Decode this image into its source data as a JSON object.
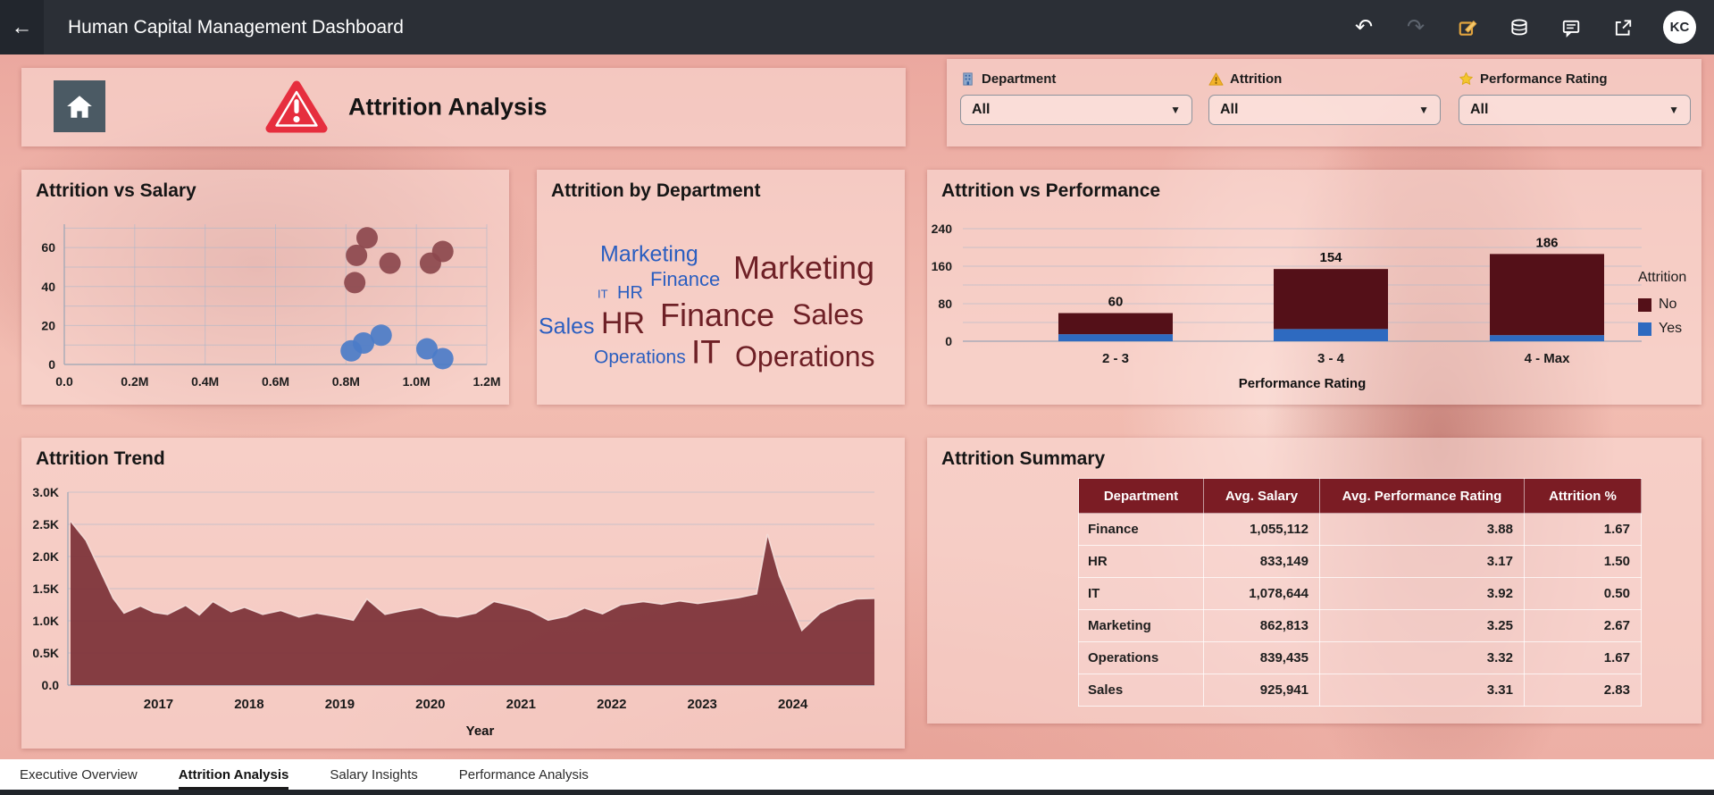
{
  "topbar": {
    "title": "Human Capital Management Dashboard",
    "icons": [
      "back-icon",
      "undo-icon",
      "redo-icon",
      "edit-icon",
      "data-refresh-icon",
      "comments-icon",
      "share-icon"
    ],
    "avatar": "KC"
  },
  "header": {
    "title": "Attrition Analysis",
    "filters": [
      {
        "icon": "department-icon",
        "label": "Department",
        "value": "All"
      },
      {
        "icon": "attrition-warning-icon",
        "label": "Attrition",
        "value": "All"
      },
      {
        "icon": "performance-star-icon",
        "label": "Performance Rating",
        "value": "All"
      }
    ]
  },
  "tabs": [
    {
      "label": "Executive Overview",
      "active": false
    },
    {
      "label": "Attrition Analysis",
      "active": true
    },
    {
      "label": "Salary Insights",
      "active": false
    },
    {
      "label": "Performance Analysis",
      "active": false
    }
  ],
  "chart_data": [
    {
      "id": "attrition_vs_salary",
      "type": "scatter",
      "title": "Attrition vs Salary",
      "xlabel": "",
      "ylabel": "",
      "xlim": [
        0,
        1.2
      ],
      "ylim": [
        0,
        72
      ],
      "xtick_labels": [
        "0.0",
        "0.2M",
        "0.4M",
        "0.6M",
        "0.8M",
        "1.0M",
        "1.2M"
      ],
      "yticks": [
        0,
        20,
        40,
        60
      ],
      "grid": true,
      "series": [
        {
          "name": "No",
          "color": "#8c484d",
          "points": [
            [
              0.86,
              65
            ],
            [
              0.83,
              56
            ],
            [
              0.925,
              52
            ],
            [
              0.825,
              42
            ],
            [
              1.04,
              52
            ],
            [
              1.075,
              58
            ]
          ]
        },
        {
          "name": "Yes",
          "color": "#4b7cc8",
          "points": [
            [
              0.815,
              7
            ],
            [
              0.85,
              11
            ],
            [
              0.9,
              15
            ],
            [
              1.03,
              8
            ],
            [
              1.075,
              3
            ]
          ]
        }
      ]
    },
    {
      "id": "attrition_by_department",
      "type": "wordcloud",
      "title": "Attrition by Department",
      "colors": {
        "Yes": "#2a5ec0",
        "No": "#6e2026"
      },
      "words": [
        {
          "text": "Marketing",
          "series": "Yes",
          "size": 25
        },
        {
          "text": "Finance",
          "series": "Yes",
          "size": 22
        },
        {
          "text": "IT",
          "series": "Yes",
          "size": 13
        },
        {
          "text": "HR",
          "series": "Yes",
          "size": 20
        },
        {
          "text": "Sales",
          "series": "Yes",
          "size": 25
        },
        {
          "text": "HR",
          "series": "No",
          "size": 34
        },
        {
          "text": "Finance",
          "series": "No",
          "size": 36
        },
        {
          "text": "Sales",
          "series": "No",
          "size": 32
        },
        {
          "text": "Marketing",
          "series": "No",
          "size": 36
        },
        {
          "text": "Operations",
          "series": "Yes",
          "size": 21
        },
        {
          "text": "IT",
          "series": "No",
          "size": 37
        },
        {
          "text": "Operations",
          "series": "No",
          "size": 32
        }
      ]
    },
    {
      "id": "attrition_vs_performance",
      "type": "bar",
      "title": "Attrition vs Performance",
      "xlabel": "Performance Rating",
      "legend_title": "Attrition",
      "legend": [
        "No",
        "Yes"
      ],
      "colors": {
        "No": "#541018",
        "Yes": "#2e6ac0"
      },
      "categories": [
        "2 - 3",
        "3 - 4",
        "4 - Max"
      ],
      "totals": [
        60,
        154,
        186
      ],
      "series": [
        {
          "name": "Yes",
          "values": [
            15,
            26,
            13
          ]
        },
        {
          "name": "No",
          "values": [
            45,
            128,
            173
          ]
        }
      ],
      "ylim": [
        0,
        240
      ],
      "yticks": [
        0,
        80,
        160,
        240
      ],
      "grid_step": 40
    },
    {
      "id": "attrition_trend",
      "type": "area",
      "title": "Attrition Trend",
      "xlabel": "Year",
      "fill_color": "#7c3238",
      "edge_color": "#f6e0dc",
      "ylim": [
        0,
        3000
      ],
      "ytick_labels": [
        "0.0",
        "0.5K",
        "1.0K",
        "1.5K",
        "2.0K",
        "2.5K",
        "3.0K"
      ],
      "xlim": [
        2016.0,
        2024.9
      ],
      "xticks": [
        2017,
        2018,
        2019,
        2020,
        2021,
        2022,
        2023,
        2024
      ],
      "points": [
        [
          2016.03,
          2550
        ],
        [
          2016.2,
          2250
        ],
        [
          2016.35,
          1800
        ],
        [
          2016.5,
          1350
        ],
        [
          2016.62,
          1120
        ],
        [
          2016.8,
          1230
        ],
        [
          2016.95,
          1130
        ],
        [
          2017.1,
          1100
        ],
        [
          2017.3,
          1240
        ],
        [
          2017.45,
          1090
        ],
        [
          2017.6,
          1300
        ],
        [
          2017.8,
          1140
        ],
        [
          2017.95,
          1210
        ],
        [
          2018.15,
          1100
        ],
        [
          2018.35,
          1160
        ],
        [
          2018.55,
          1060
        ],
        [
          2018.75,
          1120
        ],
        [
          2018.95,
          1070
        ],
        [
          2019.15,
          1010
        ],
        [
          2019.3,
          1340
        ],
        [
          2019.5,
          1100
        ],
        [
          2019.7,
          1160
        ],
        [
          2019.9,
          1210
        ],
        [
          2020.1,
          1090
        ],
        [
          2020.3,
          1060
        ],
        [
          2020.5,
          1120
        ],
        [
          2020.7,
          1300
        ],
        [
          2020.9,
          1240
        ],
        [
          2021.1,
          1160
        ],
        [
          2021.3,
          1010
        ],
        [
          2021.5,
          1070
        ],
        [
          2021.7,
          1200
        ],
        [
          2021.9,
          1110
        ],
        [
          2022.1,
          1250
        ],
        [
          2022.35,
          1300
        ],
        [
          2022.55,
          1260
        ],
        [
          2022.75,
          1310
        ],
        [
          2022.95,
          1270
        ],
        [
          2023.15,
          1310
        ],
        [
          2023.4,
          1360
        ],
        [
          2023.6,
          1420
        ],
        [
          2023.72,
          2350
        ],
        [
          2023.85,
          1700
        ],
        [
          2024.1,
          850
        ],
        [
          2024.3,
          1120
        ],
        [
          2024.5,
          1260
        ],
        [
          2024.7,
          1340
        ],
        [
          2024.9,
          1350
        ]
      ]
    },
    {
      "id": "attrition_summary",
      "type": "table",
      "title": "Attrition Summary",
      "header_color": "#7b1c24",
      "headers": [
        "Department",
        "Avg. Salary",
        "Avg. Performance Rating",
        "Attrition %"
      ],
      "rows": [
        [
          "Finance",
          "1,055,112",
          "3.88",
          "1.67"
        ],
        [
          "HR",
          "833,149",
          "3.17",
          "1.50"
        ],
        [
          "IT",
          "1,078,644",
          "3.92",
          "0.50"
        ],
        [
          "Marketing",
          "862,813",
          "3.25",
          "2.67"
        ],
        [
          "Operations",
          "839,435",
          "3.32",
          "1.67"
        ],
        [
          "Sales",
          "925,941",
          "3.31",
          "2.83"
        ]
      ]
    }
  ]
}
